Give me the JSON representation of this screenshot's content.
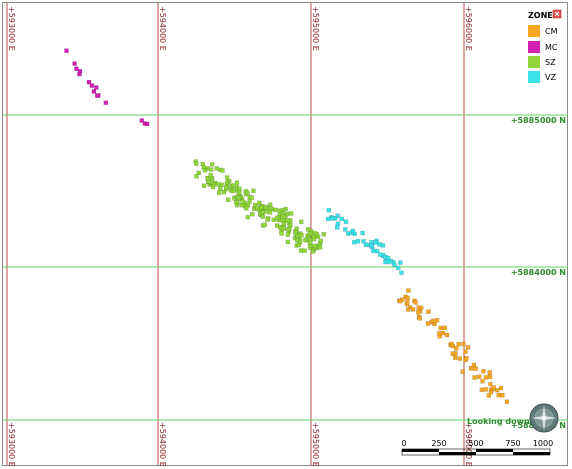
{
  "grid": {
    "eastings": [
      "+593000 E",
      "+594000 E",
      "+595000 E",
      "+596000 E"
    ],
    "northings": [
      "+5885000 N",
      "+5884000 N",
      "+5883000 N"
    ],
    "easting_color": "#c04a4a",
    "northing_color": "#5fd65f"
  },
  "legend": {
    "title": "ZONE",
    "close_icon": "close-icon",
    "items": [
      {
        "label": "CM",
        "color": "#f5a623"
      },
      {
        "label": "MC",
        "color": "#d21fb4"
      },
      {
        "label": "SZ",
        "color": "#8fd63a"
      },
      {
        "label": "VZ",
        "color": "#3ce1e8"
      }
    ]
  },
  "orientation": {
    "label": "Looking down",
    "icon": "compass-icon"
  },
  "scale_bar": {
    "ticks": [
      "0",
      "250",
      "500",
      "750",
      "1000"
    ]
  }
}
